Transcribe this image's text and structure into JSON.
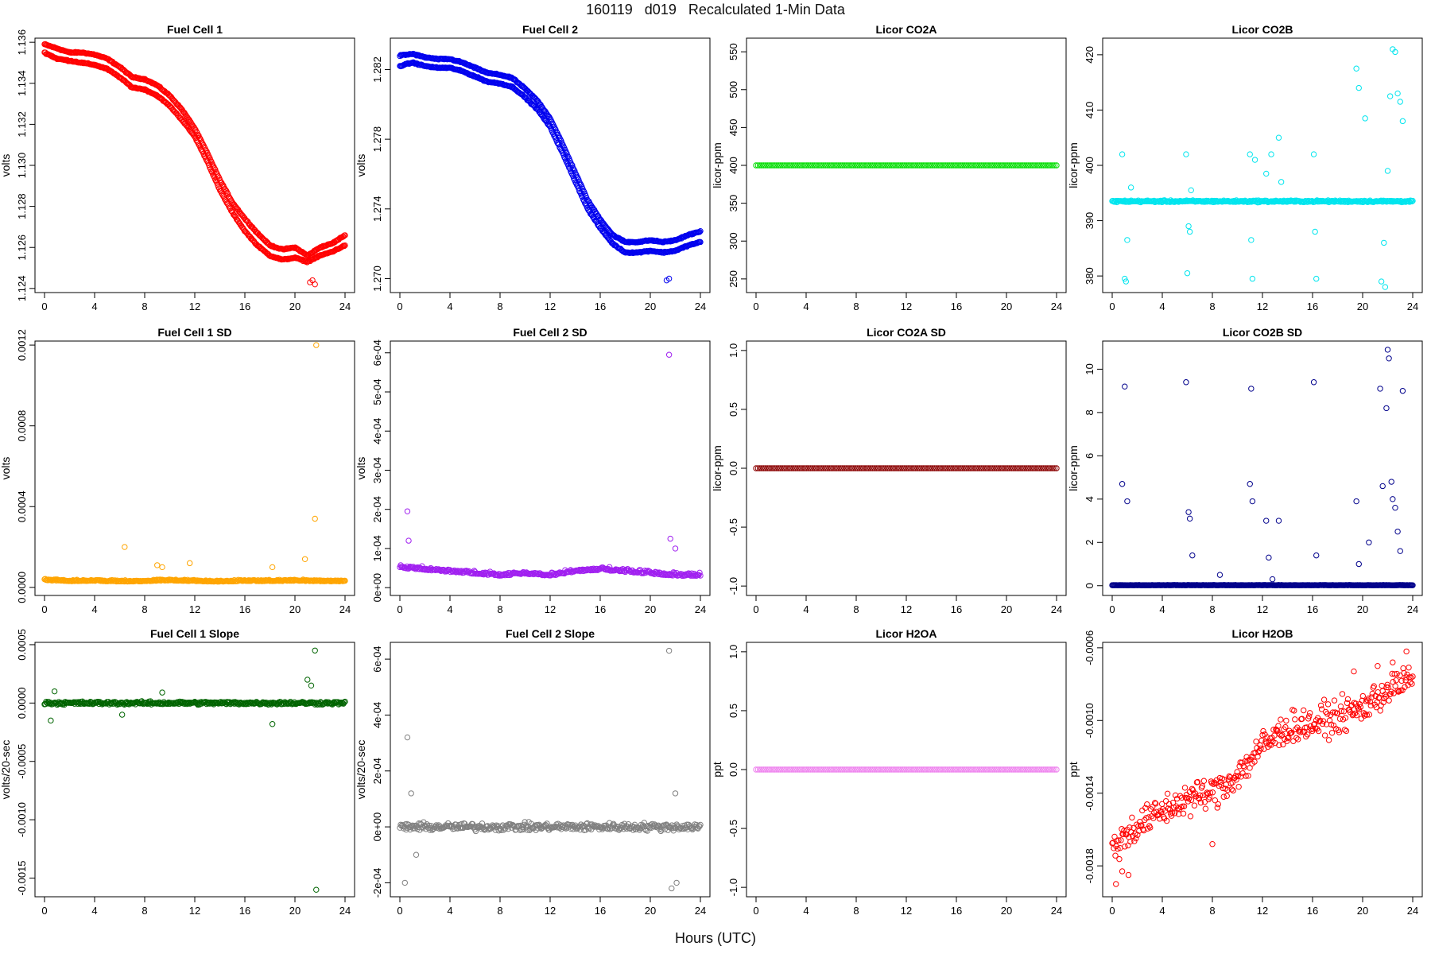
{
  "page": {
    "title": "160119   d019   Recalculated 1-Min Data",
    "xlabel": "Hours (UTC)"
  },
  "chart_data": [
    {
      "type": "scatter",
      "title": "Fuel Cell 1",
      "ylabel": "volts",
      "color": "#ff0000",
      "xlim": [
        0,
        24
      ],
      "xticks": [
        0,
        4,
        8,
        12,
        16,
        20,
        24
      ],
      "ylim": [
        1.1238,
        1.1362
      ],
      "yticks": [
        "1.124",
        "1.126",
        "1.128",
        "1.130",
        "1.132",
        "1.134",
        "1.136"
      ],
      "series": [
        {
          "x": [
            0,
            1,
            2,
            3,
            4,
            5,
            6,
            7,
            8,
            9,
            10,
            11,
            12,
            13,
            14,
            15,
            16,
            17,
            18,
            19,
            20,
            21,
            22,
            23,
            24
          ],
          "y": [
            1.1359,
            1.1357,
            1.1355,
            1.1355,
            1.1354,
            1.1352,
            1.1348,
            1.1343,
            1.1342,
            1.1339,
            1.1334,
            1.1327,
            1.1318,
            1.1306,
            1.1293,
            1.1282,
            1.1274,
            1.1267,
            1.1261,
            1.1259,
            1.126,
            1.1256,
            1.126,
            1.1262,
            1.1266
          ]
        },
        {
          "x": [
            0,
            1,
            2,
            3,
            4,
            5,
            6,
            7,
            8,
            9,
            10,
            11,
            12,
            13,
            14,
            15,
            16,
            17,
            18,
            19,
            20,
            21,
            22,
            23,
            24
          ],
          "y": [
            1.1355,
            1.1352,
            1.1351,
            1.135,
            1.1349,
            1.1347,
            1.1343,
            1.1338,
            1.1337,
            1.1334,
            1.1329,
            1.1322,
            1.1314,
            1.1302,
            1.1288,
            1.1277,
            1.1268,
            1.1261,
            1.1256,
            1.1254,
            1.1255,
            1.1253,
            1.1256,
            1.1258,
            1.1261
          ]
        }
      ],
      "outliers": {
        "x": [
          21.2,
          21.4,
          21.6
        ],
        "y": [
          1.1243,
          1.1244,
          1.1242
        ]
      }
    },
    {
      "type": "scatter",
      "title": "Fuel Cell 2",
      "ylabel": "volts",
      "color": "#0000ee",
      "xlim": [
        0,
        24
      ],
      "xticks": [
        0,
        4,
        8,
        12,
        16,
        20,
        24
      ],
      "ylim": [
        1.2692,
        1.2838
      ],
      "yticks": [
        "1.270",
        "1.274",
        "1.278",
        "1.282"
      ],
      "series": [
        {
          "x": [
            0,
            1,
            2,
            3,
            4,
            5,
            6,
            7,
            8,
            9,
            10,
            11,
            12,
            13,
            14,
            15,
            16,
            17,
            18,
            19,
            20,
            21,
            22,
            23,
            24
          ],
          "y": [
            1.2828,
            1.2829,
            1.2827,
            1.2826,
            1.2826,
            1.2824,
            1.2821,
            1.2818,
            1.2817,
            1.2815,
            1.2809,
            1.2802,
            1.2792,
            1.2777,
            1.2761,
            1.2745,
            1.2734,
            1.2725,
            1.2721,
            1.2721,
            1.2722,
            1.2721,
            1.2722,
            1.2725,
            1.2727
          ]
        },
        {
          "x": [
            0,
            1,
            2,
            3,
            4,
            5,
            6,
            7,
            8,
            9,
            10,
            11,
            12,
            13,
            14,
            15,
            16,
            17,
            18,
            19,
            20,
            21,
            22,
            23,
            24
          ],
          "y": [
            1.2822,
            1.2824,
            1.2822,
            1.2821,
            1.2821,
            1.2819,
            1.2816,
            1.2813,
            1.2812,
            1.281,
            1.2804,
            1.2797,
            1.2787,
            1.2772,
            1.2756,
            1.274,
            1.2729,
            1.272,
            1.2715,
            1.2715,
            1.2716,
            1.2715,
            1.2716,
            1.2719,
            1.2721
          ]
        }
      ],
      "outliers": {
        "x": [
          21.3,
          21.5
        ],
        "y": [
          1.2699,
          1.27
        ]
      }
    },
    {
      "type": "scatter",
      "title": "Licor CO2A",
      "ylabel": "licor-ppm",
      "color": "#00dd00",
      "xlim": [
        0,
        24
      ],
      "xticks": [
        0,
        4,
        8,
        12,
        16,
        20,
        24
      ],
      "ylim": [
        232,
        568
      ],
      "yticks": [
        "250",
        "300",
        "350",
        "400",
        "450",
        "500",
        "550"
      ],
      "series": [
        {
          "x": [
            0,
            24
          ],
          "y": [
            400,
            400
          ]
        }
      ]
    },
    {
      "type": "scatter",
      "title": "Licor CO2B",
      "ylabel": "licor-ppm",
      "color": "#00e5ee",
      "xlim": [
        0,
        24
      ],
      "xticks": [
        0,
        4,
        8,
        12,
        16,
        20,
        24
      ],
      "ylim": [
        377,
        423
      ],
      "yticks": [
        "380",
        "390",
        "400",
        "410",
        "420"
      ],
      "series": [
        {
          "x": [
            0,
            24
          ],
          "y": [
            393.5,
            393.5
          ]
        }
      ],
      "outliers": {
        "x": [
          0.8,
          1.0,
          1.1,
          1.2,
          1.5,
          5.9,
          6.0,
          6.1,
          6.2,
          6.3,
          11.0,
          11.1,
          11.2,
          11.4,
          12.3,
          12.7,
          13.3,
          13.5,
          16.1,
          16.2,
          16.3,
          19.5,
          19.7,
          20.2,
          21.5,
          21.7,
          21.8,
          22.0,
          22.2,
          22.4,
          22.6,
          22.8,
          23.0,
          23.2
        ],
        "y": [
          402,
          379.5,
          379,
          386.5,
          396,
          402,
          380.5,
          389,
          388,
          395.5,
          402,
          386.5,
          379.5,
          401,
          398.5,
          402,
          405,
          397,
          402,
          388,
          379.5,
          417.5,
          414,
          408.5,
          379,
          386,
          378,
          399,
          412.5,
          421,
          420.5,
          413,
          411.5,
          408
        ]
      }
    },
    {
      "type": "scatter",
      "title": "Fuel Cell 1 SD",
      "ylabel": "volts",
      "color": "#ffa500",
      "xlim": [
        0,
        24
      ],
      "xticks": [
        0,
        4,
        8,
        12,
        16,
        20,
        24
      ],
      "ylim": [
        -4e-05,
        0.00122
      ],
      "yticks": [
        "0.0000",
        "0.0004",
        "0.0008",
        "0.0012"
      ],
      "series": [
        {
          "x": [
            0,
            2,
            4,
            6,
            8,
            10,
            12,
            14,
            16,
            18,
            20,
            22,
            24
          ],
          "y": [
            3.5e-05,
            3e-05,
            3.2e-05,
            2.8e-05,
            3e-05,
            3.4e-05,
            3e-05,
            2.8e-05,
            3.1e-05,
            3e-05,
            3.2e-05,
            3e-05,
            2.9e-05
          ]
        }
      ],
      "outliers": {
        "x": [
          6.4,
          9.0,
          9.4,
          11.6,
          18.2,
          20.8,
          21.6,
          21.7
        ],
        "y": [
          0.0002,
          0.00011,
          0.0001,
          0.00012,
          0.0001,
          0.00014,
          0.00034,
          0.0012
        ]
      }
    },
    {
      "type": "scatter",
      "title": "Fuel Cell 2 SD",
      "ylabel": "volts",
      "color": "#a020f0",
      "xlim": [
        0,
        24
      ],
      "xticks": [
        0,
        4,
        8,
        12,
        16,
        20,
        24
      ],
      "ylim": [
        -2e-05,
        0.00063
      ],
      "yticks": [
        "0e+00",
        "1e-04",
        "2e-04",
        "3e-04",
        "4e-04",
        "5e-04",
        "6e-04"
      ],
      "series": [
        {
          "x": [
            0,
            2,
            4,
            6,
            8,
            10,
            12,
            14,
            16,
            18,
            20,
            22,
            24
          ],
          "y": [
            5e-05,
            4.5e-05,
            4e-05,
            3.5e-05,
            3e-05,
            3.5e-05,
            3e-05,
            4e-05,
            4.5e-05,
            4e-05,
            3.5e-05,
            3e-05,
            3e-05
          ]
        }
      ],
      "outliers": {
        "x": [
          0.6,
          0.7,
          21.5,
          21.6,
          22.0
        ],
        "y": [
          0.000195,
          0.00012,
          0.000595,
          0.000125,
          0.0001
        ]
      }
    },
    {
      "type": "scatter",
      "title": "Licor CO2A SD",
      "ylabel": "licor-ppm",
      "color": "#8b0000",
      "xlim": [
        0,
        24
      ],
      "xticks": [
        0,
        4,
        8,
        12,
        16,
        20,
        24
      ],
      "ylim": [
        -1.08,
        1.08
      ],
      "yticks": [
        "-1.0",
        "-0.5",
        "0.0",
        "0.5",
        "1.0"
      ],
      "series": [
        {
          "x": [
            0,
            24
          ],
          "y": [
            0,
            0
          ]
        }
      ]
    },
    {
      "type": "scatter",
      "title": "Licor CO2B SD",
      "ylabel": "licor-ppm",
      "color": "#00008b",
      "xlim": [
        0,
        24
      ],
      "xticks": [
        0,
        4,
        8,
        12,
        16,
        20,
        24
      ],
      "ylim": [
        -0.45,
        11.3
      ],
      "yticks": [
        "0",
        "2",
        "4",
        "6",
        "8",
        "10"
      ],
      "series": [
        {
          "x": [
            0,
            24
          ],
          "y": [
            0.02,
            0.02
          ]
        }
      ],
      "outliers": {
        "x": [
          0.8,
          1.0,
          1.2,
          5.9,
          6.1,
          6.2,
          6.4,
          8.6,
          11.0,
          11.1,
          11.2,
          12.3,
          12.5,
          12.8,
          13.3,
          16.1,
          16.3,
          19.5,
          19.7,
          20.5,
          21.4,
          21.6,
          21.9,
          22.0,
          22.1,
          22.3,
          22.4,
          22.6,
          22.8,
          23.0,
          23.2
        ],
        "y": [
          4.7,
          9.2,
          3.9,
          9.4,
          3.4,
          3.1,
          1.4,
          0.5,
          4.7,
          9.1,
          3.9,
          3.0,
          1.3,
          0.3,
          3.0,
          9.4,
          1.4,
          3.9,
          1.0,
          2.0,
          9.1,
          4.6,
          8.2,
          10.9,
          10.5,
          4.8,
          4.0,
          3.6,
          2.5,
          1.6,
          9.0
        ]
      }
    },
    {
      "type": "scatter",
      "title": "Fuel Cell 1 Slope",
      "ylabel": "volts/20-sec",
      "color": "#006400",
      "xlim": [
        0,
        24
      ],
      "xticks": [
        0,
        4,
        8,
        12,
        16,
        20,
        24
      ],
      "ylim": [
        -0.00166,
        0.00052
      ],
      "yticks": [
        "-0.0015",
        "-0.0010",
        "-0.0005",
        "0.0000",
        "0.0005"
      ],
      "series": [
        {
          "x": [
            0,
            24
          ],
          "y": [
            0,
            0
          ]
        }
      ],
      "outliers": {
        "x": [
          0.5,
          0.8,
          6.2,
          9.4,
          18.2,
          21.0,
          21.3,
          21.6,
          21.7
        ],
        "y": [
          -0.00015,
          0.0001,
          -0.0001,
          9e-05,
          -0.00018,
          0.0002,
          0.00015,
          0.00045,
          -0.0016
        ]
      }
    },
    {
      "type": "scatter",
      "title": "Fuel Cell 2 Slope",
      "ylabel": "volts/20-sec",
      "color": "#808080",
      "xlim": [
        0,
        24
      ],
      "xticks": [
        0,
        4,
        8,
        12,
        16,
        20,
        24
      ],
      "ylim": [
        -0.00025,
        0.00066
      ],
      "yticks": [
        "-2e-04",
        "0e+00",
        "2e-04",
        "4e-04",
        "6e-04"
      ],
      "series": [
        {
          "x": [
            0,
            24
          ],
          "y": [
            0,
            0
          ]
        }
      ],
      "outliers": {
        "x": [
          0.4,
          0.6,
          0.9,
          1.3,
          21.5,
          21.7,
          22.0,
          22.1
        ],
        "y": [
          -0.0002,
          0.00032,
          0.00012,
          -0.0001,
          0.00063,
          -0.00022,
          0.00012,
          -0.0002
        ]
      }
    },
    {
      "type": "scatter",
      "title": "Licor H2OA",
      "ylabel": "ppt",
      "color": "#ee82ee",
      "xlim": [
        0,
        24
      ],
      "xticks": [
        0,
        4,
        8,
        12,
        16,
        20,
        24
      ],
      "ylim": [
        -1.08,
        1.08
      ],
      "yticks": [
        "-1.0",
        "-0.5",
        "0.0",
        "0.5",
        "1.0"
      ],
      "series": [
        {
          "x": [
            0,
            24
          ],
          "y": [
            0,
            0
          ]
        }
      ]
    },
    {
      "type": "scatter",
      "title": "Licor H2OB",
      "ylabel": "ppt",
      "color": "#ff0000",
      "xlim": [
        0,
        24
      ],
      "xticks": [
        0,
        4,
        8,
        12,
        16,
        20,
        24
      ],
      "ylim": [
        -0.00197,
        -0.00057
      ],
      "yticks": [
        "-0.0018",
        "-0.0014",
        "-0.0010",
        "-0.0006"
      ],
      "series": [
        {
          "x": [
            0,
            2,
            4,
            6,
            8,
            10,
            12,
            14,
            16,
            18,
            20,
            22,
            24
          ],
          "y": [
            -0.0017,
            -0.00158,
            -0.0015,
            -0.00143,
            -0.0014,
            -0.0013,
            -0.00114,
            -0.00104,
            -0.00102,
            -0.00098,
            -0.00093,
            -0.00083,
            -0.00077
          ]
        }
      ],
      "outliers": {
        "x": [
          0.3,
          0.8,
          1.3,
          8.0,
          19.3,
          21.2,
          22.4,
          23.5
        ],
        "y": [
          -0.0019,
          -0.00183,
          -0.00185,
          -0.00168,
          -0.00073,
          -0.0007,
          -0.00068,
          -0.00062
        ]
      }
    }
  ]
}
